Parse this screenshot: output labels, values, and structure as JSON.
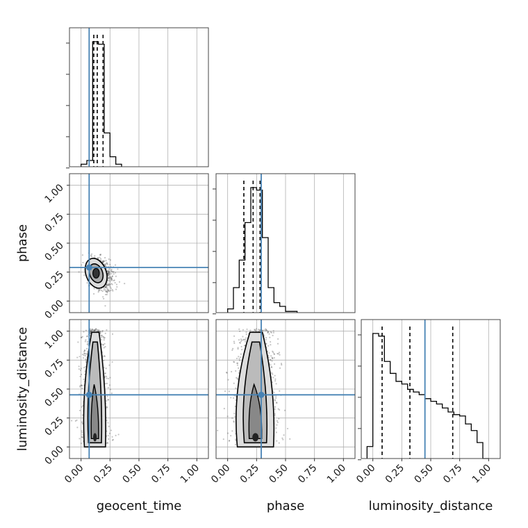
{
  "chart_data": {
    "type": "corner",
    "parameters": [
      "geocent_time",
      "phase",
      "luminosity_distance"
    ],
    "axis_labels": {
      "x": [
        "geocent_time",
        "phase",
        "luminosity_distance"
      ],
      "y": [
        "phase",
        "luminosity_distance"
      ]
    },
    "ticks": [
      "0.00",
      "0.25",
      "0.50",
      "0.75",
      "1.00"
    ],
    "xlim": [
      -0.1,
      1.1
    ],
    "ylim": [
      -0.1,
      1.1
    ],
    "grid": true,
    "truths": {
      "geocent_time": 0.07,
      "phase": 0.29,
      "luminosity_distance": 0.45
    },
    "quantiles": {
      "geocent_time": [
        0.11,
        0.14,
        0.19
      ],
      "phase": [
        0.14,
        0.22,
        0.28
      ],
      "luminosity_distance": [
        0.08,
        0.32,
        0.69
      ]
    },
    "histograms": {
      "geocent_time": {
        "edges": [
          0.0,
          0.05,
          0.1,
          0.15,
          0.2,
          0.25,
          0.3,
          0.35
        ],
        "counts": [
          0.02,
          0.05,
          1.0,
          0.98,
          0.27,
          0.08,
          0.02
        ]
      },
      "phase": {
        "edges": [
          0.0,
          0.05,
          0.1,
          0.15,
          0.2,
          0.25,
          0.3,
          0.35,
          0.4,
          0.45,
          0.5,
          0.55,
          0.6
        ],
        "counts": [
          0.03,
          0.2,
          0.42,
          0.72,
          1.0,
          0.98,
          0.6,
          0.2,
          0.08,
          0.05,
          0.01,
          0.01
        ]
      },
      "luminosity_distance": {
        "edges": [
          -0.05,
          0.0,
          0.05,
          0.1,
          0.15,
          0.2,
          0.25,
          0.3,
          0.35,
          0.4,
          0.45,
          0.5,
          0.55,
          0.6,
          0.65,
          0.7,
          0.75,
          0.8,
          0.85,
          0.9,
          0.95,
          1.0
        ],
        "counts": [
          0.09,
          0.94,
          0.92,
          0.73,
          0.64,
          0.58,
          0.56,
          0.52,
          0.5,
          0.48,
          0.45,
          0.43,
          0.41,
          0.38,
          0.35,
          0.33,
          0.32,
          0.26,
          0.21,
          0.12,
          0.0
        ]
      }
    },
    "panels_2d": [
      {
        "x": "geocent_time",
        "y": "phase",
        "center": [
          0.13,
          0.24
        ],
        "spread": [
          0.04,
          0.07
        ]
      },
      {
        "x": "geocent_time",
        "y": "luminosity_distance",
        "center": [
          0.12,
          0.3
        ],
        "spread": [
          0.035,
          0.28
        ]
      },
      {
        "x": "phase",
        "y": "luminosity_distance",
        "center": [
          0.24,
          0.3
        ],
        "spread": [
          0.06,
          0.28
        ]
      }
    ],
    "colors": {
      "truth": "#4682b4",
      "hist": "#000000",
      "scatter": "#555555",
      "grid": "#b0b0b0"
    }
  }
}
